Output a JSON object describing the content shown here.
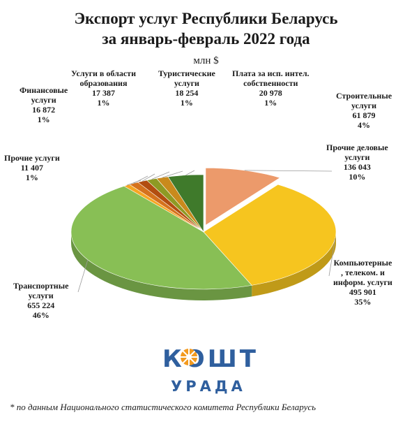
{
  "header": {
    "title_line1": "Экспорт услуг Республики Беларусь",
    "title_line2": "за январь-февраль 2022 года",
    "unit": "млн $"
  },
  "chart_data": {
    "type": "pie",
    "title": "Экспорт услуг Республики Беларусь за январь-февраль 2022 года",
    "unit": "млн $",
    "slices": [
      {
        "name_lines": [
          "Прочие деловые",
          "услуги"
        ],
        "value": 136043,
        "value_text": "136 043",
        "percent_text": "10%",
        "color": "#ec9a6b"
      },
      {
        "name_lines": [
          "Компьютерные",
          ", телеком. и",
          "информ. услуги"
        ],
        "value": 495901,
        "value_text": "495 901",
        "percent_text": "35%",
        "color": "#f6c51f"
      },
      {
        "name_lines": [
          "Транспортные",
          "услуги"
        ],
        "value": 655224,
        "value_text": "655 224",
        "percent_text": "46%",
        "color": "#88bf55"
      },
      {
        "name_lines": [
          "Прочие услуги"
        ],
        "value": 11407,
        "value_text": "11 407",
        "percent_text": "1%",
        "color": "#f6a623"
      },
      {
        "name_lines": [
          "Финансовые",
          "услуги"
        ],
        "value": 16872,
        "value_text": "16 872",
        "percent_text": "1%",
        "color": "#d5721d"
      },
      {
        "name_lines": [
          "Услуги в области",
          "образования"
        ],
        "value": 17387,
        "value_text": "17 387",
        "percent_text": "1%",
        "color": "#b24d10"
      },
      {
        "name_lines": [
          "Туристические",
          "услуги"
        ],
        "value": 18254,
        "value_text": "18 254",
        "percent_text": "1%",
        "color": "#8e9a24"
      },
      {
        "name_lines": [
          "Плата за исп. интел.",
          "собственности"
        ],
        "value": 20978,
        "value_text": "20 978",
        "percent_text": "1%",
        "color": "#c98a1c"
      },
      {
        "name_lines": [
          "Строительные",
          "услуги"
        ],
        "value": 61879,
        "value_text": "61 879",
        "percent_text": "4%",
        "color": "#3f7a2b"
      }
    ]
  },
  "logo": {
    "top_text": "КОШТ",
    "bottom_text": "УРАДА",
    "color": "#2f5f9e",
    "accent": "#f39a1e"
  },
  "footnote": "* по данным Национального статистического комитета Республики Беларусь"
}
